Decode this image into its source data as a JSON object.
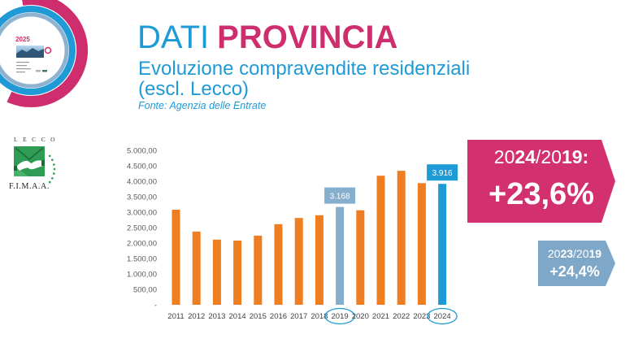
{
  "header": {
    "title_part1": "DATI",
    "title_part2": "PROVINCIA",
    "subtitle_line1": "Evoluzione compravendite residenziali",
    "subtitle_line2": "(escl. Lecco)",
    "source": "Fonte: Agenzia delle Entrate"
  },
  "logos": {
    "event_badge": {
      "icon": "event-badge-logo",
      "text": "2025"
    },
    "association": {
      "icon": "handshake-icon",
      "city": "LECCO",
      "name": "F.I.M.A.A."
    }
  },
  "callouts": {
    "main": {
      "label_parts": [
        "20",
        "24",
        "/20",
        "19:"
      ],
      "value": "+23,6%",
      "color": "#d2306e"
    },
    "secondary": {
      "label_parts": [
        "20",
        "23",
        "/20",
        "19"
      ],
      "value": "+24,4%",
      "color": "#7fa8c8"
    }
  },
  "colors": {
    "primary_blue": "#1e9ad6",
    "magenta": "#cf2e6e",
    "steel_blue": "#86aecd",
    "orange": "#ef7d22",
    "fimaa_green": "#2f9c55"
  },
  "chart_data": {
    "type": "bar",
    "categories": [
      "2011",
      "2012",
      "2013",
      "2014",
      "2015",
      "2016",
      "2017",
      "2018",
      "2019",
      "2020",
      "2021",
      "2022",
      "2023",
      "2024"
    ],
    "values": [
      3080,
      2370,
      2110,
      2080,
      2240,
      2610,
      2810,
      2900,
      3168,
      3060,
      4180,
      4340,
      3940,
      3916
    ],
    "ylim": [
      0,
      5000
    ],
    "yticks": [
      0,
      500,
      1000,
      1500,
      2000,
      2500,
      3000,
      3500,
      4000,
      4500,
      5000
    ],
    "ytick_labels": [
      "-",
      "500,00",
      "1.000,00",
      "1.500,00",
      "2.000,00",
      "2.500,00",
      "3.000,00",
      "3.500,00",
      "4.000,00",
      "4.500,00",
      "5.000,00"
    ],
    "bar_color": "#ef7d22",
    "highlighted": [
      {
        "category": "2019",
        "bar_color": "#86aecd",
        "data_label": "3.168",
        "tick_circled": true
      },
      {
        "category": "2024",
        "bar_color": "#1e9ad6",
        "data_label": "3.916",
        "tick_circled": true
      }
    ],
    "circle_color": "#1e9ad6",
    "grid": false,
    "legend": "none"
  }
}
